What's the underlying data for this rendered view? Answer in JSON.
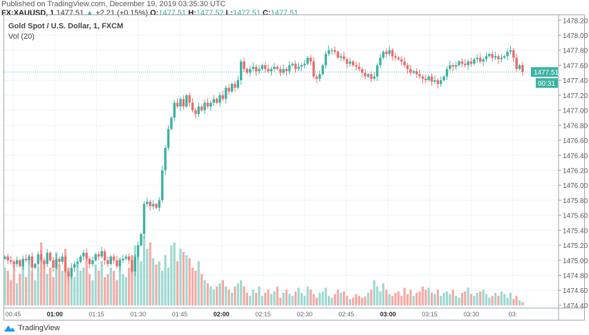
{
  "header": {
    "published": "Published on TradingView.com, December 19, 2019 03:35:30 UTC",
    "symbol": "FX:XAUUSD, 1",
    "last": "1477.51",
    "change": "+2.21 (+0.15%)",
    "o_label": "O:",
    "o": "1477.51",
    "h_label": "H:",
    "h": "1477.52",
    "l_label": "L:",
    "l": "1477.51",
    "c_label": "C:",
    "c": "1477.51"
  },
  "legend": {
    "title": "Gold Spot / U.S. Dollar, 1, FXCM",
    "vol": "Vol (20)"
  },
  "price_label": "1477.51",
  "countdown": "00:31",
  "footer": {
    "brand": "TradingView"
  },
  "colors": {
    "up": "#3bb3a2",
    "down": "#ef6a6a",
    "up_vol": "#9ed8d0",
    "down_vol": "#f4a9a4",
    "grid": "#eef2f6"
  },
  "chart_data": {
    "type": "candlestick",
    "title": "Gold Spot / U.S. Dollar, 1, FXCM",
    "interval_minutes": 1,
    "start_time": "00:42",
    "ylim": [
      1474.4,
      1478.2
    ],
    "y_ticks": [
      "1478.20",
      "1478.00",
      "1477.80",
      "1477.60",
      "1477.40",
      "1477.20",
      "1477.00",
      "1476.80",
      "1476.60",
      "1476.40",
      "1476.20",
      "1476.00",
      "1475.80",
      "1475.60",
      "1475.40",
      "1475.20",
      "1475.00",
      "1474.80",
      "1474.60",
      "1474.40"
    ],
    "x_ticks": [
      "00:45",
      "01:00",
      "01:15",
      "01:30",
      "01:45",
      "02:00",
      "02:15",
      "02:30",
      "02:45",
      "03:00",
      "03:15",
      "03:30",
      "03:"
    ],
    "close": [
      1475.05,
      1475.0,
      1474.98,
      1474.95,
      1475.0,
      1474.92,
      1475.02,
      1475.0,
      1475.05,
      1474.9,
      1474.95,
      1475.08,
      1475.0,
      1474.95,
      1475.1,
      1475.0,
      1474.9,
      1475.02,
      1474.98,
      1475.05,
      1474.85,
      1474.78,
      1474.9,
      1474.95,
      1474.98,
      1475.05,
      1475.1,
      1475.02,
      1474.95,
      1475.0,
      1475.08,
      1475.05,
      1475.12,
      1475.0,
      1474.95,
      1475.05,
      1475.0,
      1474.92,
      1475.0,
      1475.02,
      1475.05,
      1475.0,
      1474.85,
      1475.05,
      1475.2,
      1475.35,
      1475.75,
      1475.78,
      1475.72,
      1475.75,
      1475.7,
      1475.8,
      1476.2,
      1476.5,
      1476.75,
      1476.9,
      1477.1,
      1477.05,
      1477.15,
      1477.05,
      1477.2,
      1477.1,
      1477.0,
      1476.95,
      1477.05,
      1477.0,
      1477.1,
      1477.05,
      1477.1,
      1477.15,
      1477.1,
      1477.2,
      1477.15,
      1477.3,
      1477.25,
      1477.35,
      1477.3,
      1477.4,
      1477.65,
      1477.55,
      1477.5,
      1477.55,
      1477.58,
      1477.52,
      1477.55,
      1477.6,
      1477.55,
      1477.52,
      1477.55,
      1477.58,
      1477.55,
      1477.5,
      1477.55,
      1477.52,
      1477.6,
      1477.62,
      1477.55,
      1477.58,
      1477.6,
      1477.62,
      1477.7,
      1477.65,
      1477.45,
      1477.42,
      1477.48,
      1477.6,
      1477.75,
      1477.8,
      1477.8,
      1477.78,
      1477.7,
      1477.72,
      1477.68,
      1477.62,
      1477.65,
      1477.6,
      1477.58,
      1477.55,
      1477.5,
      1477.45,
      1477.48,
      1477.42,
      1477.45,
      1477.6,
      1477.7,
      1477.78,
      1477.75,
      1477.8,
      1477.72,
      1477.7,
      1477.68,
      1477.65,
      1477.6,
      1477.55,
      1477.5,
      1477.52,
      1477.48,
      1477.45,
      1477.42,
      1477.4,
      1477.45,
      1477.38,
      1477.4,
      1477.35,
      1477.4,
      1477.45,
      1477.55,
      1477.6,
      1477.58,
      1477.6,
      1477.65,
      1477.62,
      1477.6,
      1477.65,
      1477.62,
      1477.68,
      1477.7,
      1477.65,
      1477.68,
      1477.72,
      1477.75,
      1477.7,
      1477.72,
      1477.68,
      1477.7,
      1477.72,
      1477.78,
      1477.8,
      1477.7,
      1477.55,
      1477.6,
      1477.51
    ],
    "volume": [
      60,
      55,
      40,
      70,
      35,
      50,
      65,
      45,
      80,
      55,
      40,
      60,
      100,
      70,
      50,
      60,
      45,
      85,
      65,
      55,
      90,
      60,
      50,
      45,
      70,
      55,
      60,
      75,
      50,
      40,
      65,
      55,
      70,
      45,
      50,
      60,
      55,
      40,
      75,
      50,
      45,
      60,
      80,
      95,
      85,
      70,
      110,
      90,
      100,
      75,
      65,
      70,
      55,
      80,
      60,
      95,
      100,
      70,
      90,
      85,
      80,
      75,
      60,
      55,
      70,
      50,
      40,
      35,
      30,
      25,
      30,
      35,
      40,
      30,
      25,
      20,
      30,
      35,
      40,
      30,
      20,
      15,
      25,
      20,
      30,
      15,
      20,
      25,
      18,
      22,
      30,
      12,
      20,
      25,
      18,
      15,
      22,
      28,
      20,
      15,
      30,
      25,
      18,
      12,
      20,
      22,
      28,
      15,
      12,
      18,
      25,
      20,
      22,
      15,
      10,
      12,
      18,
      15,
      12,
      14,
      20,
      25,
      40,
      30,
      22,
      35,
      25,
      18,
      15,
      20,
      22,
      15,
      28,
      18,
      25,
      15,
      20,
      22,
      30,
      25,
      28,
      20,
      18,
      25,
      15,
      20,
      22,
      18,
      25,
      15,
      12,
      20,
      22,
      28,
      18,
      15,
      20,
      22,
      25,
      18,
      12,
      15,
      20,
      15,
      22,
      18,
      12,
      20,
      10,
      15,
      8,
      5
    ]
  }
}
